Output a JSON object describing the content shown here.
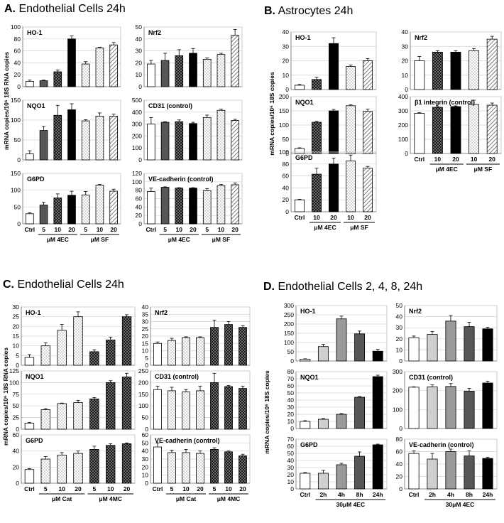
{
  "colors": {
    "white": "#ffffff",
    "light": "#cfcfcf",
    "gray": "#9a9a9a",
    "mid": "#7a7a7a",
    "dark": "#565656",
    "darker": "#4a4a4a",
    "black": "#000000"
  },
  "panels": [
    {
      "id": "A",
      "letter": "A.",
      "title": "Endothelial Cells 24h",
      "ylabel": "mRNA copies/10⁶ 18S RNA copies",
      "xticks": [
        "Ctrl",
        "5",
        "10",
        "20",
        "5",
        "10",
        "20"
      ],
      "groups": [
        "μM 4EC",
        "μM SF"
      ],
      "fills": [
        "white",
        "gray",
        "gray",
        "black",
        "light",
        "light",
        "light"
      ]
    },
    {
      "id": "B",
      "letter": "B.",
      "title": "Astrocytes 24h",
      "ylabel": "mRNA copies/10⁶ 18S copies",
      "xticks": [
        "Ctrl",
        "10",
        "20",
        "10",
        "20"
      ],
      "groups": [
        "μM 4EC",
        "μM SF"
      ],
      "fills": [
        "white",
        "darker",
        "black",
        "light",
        "light"
      ]
    },
    {
      "id": "C",
      "letter": "C.",
      "title": "Endothelial Cells 24h",
      "ylabel": "mRNA copies/10⁶ 18S RNA copies",
      "xticks": [
        "Ctrl",
        "5",
        "10",
        "20",
        "5",
        "10",
        "20"
      ],
      "groups": [
        "μM Cat",
        "μM 4MC"
      ],
      "fills": [
        "white",
        "light",
        "light",
        "light",
        "darker",
        "darker",
        "darker"
      ]
    },
    {
      "id": "D",
      "letter": "D.",
      "title": "Endothelial Cells 2, 4, 8, 24h",
      "ylabel": "mRNA copies/10⁶ 18S copies",
      "xticks": [
        "Ctrl",
        "2h",
        "4h",
        "8h",
        "24h"
      ],
      "groups": [
        "30μM 4EC"
      ],
      "fills": [
        "white",
        "light",
        "gray",
        "dark",
        "black"
      ]
    }
  ],
  "chart_data": [
    {
      "type": "bar",
      "panel": "A",
      "title": "HO-1",
      "ylim": [
        0,
        100
      ],
      "yticks": [
        0,
        20,
        40,
        60,
        80,
        100
      ],
      "values": [
        9,
        10,
        25,
        80,
        38,
        65,
        70
      ],
      "errors": [
        2,
        1,
        3,
        5,
        4,
        1,
        4
      ]
    },
    {
      "type": "bar",
      "panel": "A",
      "title": "Nrf2",
      "ylim": [
        0,
        50
      ],
      "yticks": [
        0,
        10,
        20,
        30,
        40,
        50
      ],
      "values": [
        19,
        22,
        26,
        28,
        23,
        27,
        43
      ],
      "errors": [
        3,
        6,
        5,
        4,
        1,
        1,
        5
      ]
    },
    {
      "type": "bar",
      "panel": "A",
      "title": "NQO1",
      "ylim": [
        0,
        150
      ],
      "yticks": [
        0,
        50,
        100,
        150
      ],
      "values": [
        15,
        74,
        112,
        126,
        98,
        110,
        110
      ],
      "errors": [
        8,
        10,
        25,
        15,
        3,
        8,
        5
      ]
    },
    {
      "type": "bar",
      "panel": "A",
      "title": "CD31 (control)",
      "ylim": [
        0,
        500
      ],
      "yticks": [
        0,
        100,
        200,
        300,
        400,
        500
      ],
      "values": [
        300,
        315,
        320,
        305,
        355,
        415,
        330
      ],
      "errors": [
        55,
        5,
        15,
        10,
        20,
        10,
        10
      ]
    },
    {
      "type": "bar",
      "panel": "A",
      "title": "G6PD",
      "ylim": [
        0,
        150
      ],
      "yticks": [
        0,
        50,
        100,
        150
      ],
      "values": [
        30,
        56,
        77,
        85,
        86,
        115,
        97
      ],
      "errors": [
        3,
        8,
        12,
        12,
        10,
        2,
        6
      ]
    },
    {
      "type": "bar",
      "panel": "A",
      "title": "VE-cadherin (control)",
      "ylim": [
        0,
        120
      ],
      "yticks": [
        0,
        20,
        40,
        60,
        80,
        100,
        120
      ],
      "values": [
        77,
        87,
        85,
        85,
        79,
        91,
        93
      ],
      "errors": [
        8,
        1,
        1,
        1,
        5,
        3,
        4
      ]
    },
    {
      "type": "bar",
      "panel": "B",
      "title": "HO-1",
      "ylim": [
        0,
        40
      ],
      "yticks": [
        0,
        10,
        20,
        30,
        40
      ],
      "values": [
        3,
        7,
        32,
        16,
        20
      ],
      "errors": [
        0.5,
        1.5,
        4,
        1,
        1.5
      ]
    },
    {
      "type": "bar",
      "panel": "B",
      "title": "Nrf2",
      "ylim": [
        0,
        40
      ],
      "yticks": [
        0,
        10,
        20,
        30,
        40
      ],
      "values": [
        20,
        26,
        26,
        27,
        35
      ],
      "errors": [
        3,
        1,
        1,
        1.5,
        2
      ]
    },
    {
      "type": "bar",
      "panel": "B",
      "title": "NQO1",
      "ylim": [
        0,
        200
      ],
      "yticks": [
        0,
        50,
        100,
        150,
        200
      ],
      "values": [
        18,
        110,
        150,
        168,
        148
      ],
      "errors": [
        2,
        3,
        5,
        3,
        8
      ]
    },
    {
      "type": "bar",
      "panel": "B",
      "title": "β1 integrin (control)",
      "ylim": [
        0,
        400
      ],
      "yticks": [
        0,
        100,
        200,
        300,
        400
      ],
      "values": [
        282,
        325,
        330,
        345,
        340
      ],
      "errors": [
        5,
        5,
        5,
        30,
        15
      ]
    },
    {
      "type": "bar",
      "panel": "B",
      "title": "G6PD",
      "ylim": [
        0,
        100
      ],
      "yticks": [
        0,
        20,
        40,
        60,
        80,
        100
      ],
      "values": [
        20,
        63,
        80,
        85,
        73
      ],
      "errors": [
        1,
        10,
        10,
        10,
        3
      ]
    },
    {
      "type": "bar",
      "panel": "C",
      "title": "HO-1",
      "ylim": [
        0,
        30
      ],
      "yticks": [
        0,
        5,
        10,
        15,
        20,
        25,
        30
      ],
      "values": [
        4,
        10,
        18,
        25,
        7,
        13,
        25
      ],
      "errors": [
        1.5,
        1.5,
        3,
        2.5,
        1,
        1.5,
        1
      ]
    },
    {
      "type": "bar",
      "panel": "C",
      "title": "Nrf2",
      "ylim": [
        0,
        40
      ],
      "yticks": [
        0,
        5,
        10,
        15,
        20,
        25,
        30,
        35,
        40
      ],
      "values": [
        15,
        17,
        19,
        19,
        26,
        28,
        26
      ],
      "errors": [
        1,
        1.5,
        0.5,
        0.5,
        5,
        2,
        1
      ]
    },
    {
      "type": "bar",
      "panel": "C",
      "title": "NQO1",
      "ylim": [
        0,
        125
      ],
      "yticks": [
        0,
        25,
        50,
        75,
        100,
        125
      ],
      "values": [
        13,
        42,
        55,
        57,
        65,
        100,
        112
      ],
      "errors": [
        1.5,
        2,
        1,
        5,
        3,
        4,
        8
      ]
    },
    {
      "type": "bar",
      "panel": "C",
      "title": "CD31 (control)",
      "ylim": [
        0,
        250
      ],
      "yticks": [
        0,
        50,
        100,
        150,
        200,
        250
      ],
      "values": [
        170,
        165,
        160,
        165,
        200,
        183,
        175
      ],
      "errors": [
        15,
        15,
        10,
        20,
        40,
        5,
        10
      ]
    },
    {
      "type": "bar",
      "panel": "C",
      "title": "G6PD",
      "ylim": [
        0,
        60
      ],
      "yticks": [
        0,
        20,
        40,
        60
      ],
      "values": [
        17,
        30,
        35,
        37,
        42,
        47,
        49
      ],
      "errors": [
        1,
        3,
        3,
        3,
        4,
        2,
        1
      ]
    },
    {
      "type": "bar",
      "panel": "C",
      "title": "VE-cadherin (control)",
      "ylim": [
        0,
        60
      ],
      "yticks": [
        0,
        10,
        20,
        30,
        40,
        50,
        60
      ],
      "values": [
        45,
        38,
        38,
        37,
        42,
        39,
        34
      ],
      "errors": [
        5,
        3,
        4,
        3,
        2,
        1,
        2
      ]
    },
    {
      "type": "bar",
      "panel": "D",
      "title": "HO-1",
      "ylim": [
        0,
        300
      ],
      "yticks": [
        0,
        50,
        100,
        150,
        200,
        250,
        300
      ],
      "values": [
        10,
        78,
        228,
        147,
        53
      ],
      "errors": [
        2,
        12,
        15,
        15,
        10
      ]
    },
    {
      "type": "bar",
      "panel": "D",
      "title": "Nrf2",
      "ylim": [
        0,
        50
      ],
      "yticks": [
        0,
        10,
        20,
        30,
        40,
        50
      ],
      "values": [
        21,
        24,
        36,
        31,
        29
      ],
      "errors": [
        1.5,
        2.5,
        5,
        4,
        1.5
      ]
    },
    {
      "type": "bar",
      "panel": "D",
      "title": "NQO1",
      "ylim": [
        0,
        80
      ],
      "yticks": [
        0,
        10,
        20,
        30,
        40,
        50,
        60,
        70,
        80
      ],
      "values": [
        10,
        13,
        20,
        44,
        73
      ],
      "errors": [
        1,
        1,
        1,
        1,
        2
      ]
    },
    {
      "type": "bar",
      "panel": "D",
      "title": "CD31 (control)",
      "ylim": [
        0,
        300
      ],
      "yticks": [
        0,
        100,
        200,
        300
      ],
      "values": [
        218,
        220,
        222,
        197,
        240
      ],
      "errors": [
        2,
        10,
        15,
        15,
        10
      ]
    },
    {
      "type": "bar",
      "panel": "D",
      "title": "G6PD",
      "ylim": [
        0,
        70
      ],
      "yticks": [
        0,
        10,
        20,
        30,
        40,
        50,
        60,
        70
      ],
      "values": [
        22,
        22,
        34,
        46,
        62
      ],
      "errors": [
        1,
        4,
        2,
        6,
        1
      ]
    },
    {
      "type": "bar",
      "panel": "D",
      "title": "VE-cadherin (control)",
      "ylim": [
        0,
        80
      ],
      "yticks": [
        0,
        20,
        40,
        60,
        80
      ],
      "values": [
        57,
        48,
        60,
        53,
        49
      ],
      "errors": [
        4,
        9,
        4,
        8,
        2
      ]
    }
  ]
}
